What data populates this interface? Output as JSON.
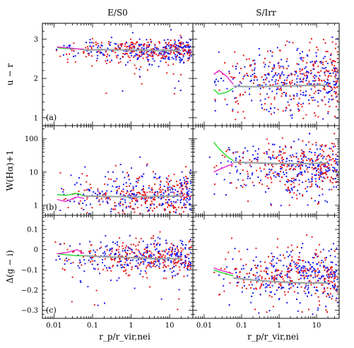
{
  "chart_data": {
    "type": "scatter",
    "columns": [
      "E/S0",
      "S/Irr"
    ],
    "xlabel": "r_p/r_vir,nei",
    "x_scale": "log",
    "xlim": [
      0.005,
      40
    ],
    "xticks": [
      {
        "v": 0.01,
        "label": "0.01"
      },
      {
        "v": 0.1,
        "label": "0.1"
      },
      {
        "v": 1,
        "label": "1"
      },
      {
        "v": 10,
        "label": "10"
      }
    ],
    "series_colors": {
      "red": "#e8181b",
      "blue": "#1a1aee",
      "median": "#9aa3a3",
      "green": "#22d82a",
      "magenta": "#ee22c8"
    },
    "rows": [
      {
        "letter": "(a)",
        "ylabel": "u − r",
        "y_scale": "linear",
        "ylim": [
          0.8,
          3.4
        ],
        "yticks": [
          {
            "v": 1,
            "label": "1"
          },
          {
            "v": 2,
            "label": "2"
          },
          {
            "v": 3,
            "label": "3"
          }
        ],
        "panels": [
          {
            "cloud": {
              "center_y": 2.72,
              "spread_y": 0.14,
              "outlier_low": 1.6,
              "xmin": 0.008,
              "xmax": 35
            },
            "median_line": [
              [
                0.06,
                2.72
              ],
              [
                0.2,
                2.73
              ],
              [
                1,
                2.72
              ],
              [
                5,
                2.71
              ],
              [
                20,
                2.71
              ]
            ],
            "green_line": [
              [
                0.012,
                2.78
              ],
              [
                0.02,
                2.76
              ],
              [
                0.04,
                2.75
              ],
              [
                0.06,
                2.73
              ]
            ],
            "magenta_line": [
              [
                0.012,
                2.8
              ],
              [
                0.02,
                2.78
              ],
              [
                0.04,
                2.75
              ],
              [
                0.06,
                2.74
              ]
            ]
          },
          {
            "cloud": {
              "center_y": 1.95,
              "spread_y": 0.45,
              "outlier_low": 0.95,
              "xmin": 0.012,
              "xmax": 35
            },
            "median_line": [
              [
                0.06,
                1.8
              ],
              [
                0.2,
                1.79
              ],
              [
                1,
                1.8
              ],
              [
                5,
                1.82
              ],
              [
                20,
                1.83
              ]
            ],
            "green_line": [
              [
                0.018,
                1.72
              ],
              [
                0.025,
                1.6
              ],
              [
                0.04,
                1.65
              ],
              [
                0.06,
                1.75
              ]
            ],
            "magenta_line": [
              [
                0.018,
                2.1
              ],
              [
                0.025,
                2.2
              ],
              [
                0.04,
                2.05
              ],
              [
                0.06,
                1.85
              ]
            ]
          }
        ]
      },
      {
        "letter": "(b)",
        "ylabel": "W(Hα)+1",
        "y_scale": "log",
        "ylim": [
          0.5,
          250
        ],
        "yticks": [
          {
            "v": 1,
            "label": "1"
          },
          {
            "v": 10,
            "label": "10"
          },
          {
            "v": 100,
            "label": "100"
          }
        ],
        "panels": [
          {
            "cloud": {
              "center_y": 2.0,
              "spread_y": 0.35,
              "outlier_low": 0.6,
              "xmin": 0.008,
              "xmax": 35
            },
            "median_line": [
              [
                0.06,
                1.9
              ],
              [
                0.2,
                1.85
              ],
              [
                1,
                1.8
              ],
              [
                5,
                1.85
              ],
              [
                20,
                1.9
              ]
            ],
            "green_line": [
              [
                0.012,
                2.1
              ],
              [
                0.02,
                2.0
              ],
              [
                0.04,
                2.3
              ],
              [
                0.06,
                1.9
              ]
            ],
            "magenta_line": [
              [
                0.012,
                1.5
              ],
              [
                0.02,
                1.3
              ],
              [
                0.04,
                1.8
              ],
              [
                0.06,
                1.6
              ]
            ]
          },
          {
            "cloud": {
              "center_y": 15,
              "spread_y": 0.4,
              "outlier_low": 1.0,
              "xmin": 0.012,
              "xmax": 35
            },
            "median_line": [
              [
                0.06,
                20
              ],
              [
                0.2,
                19
              ],
              [
                1,
                18
              ],
              [
                5,
                18
              ],
              [
                20,
                19
              ]
            ],
            "green_line": [
              [
                0.018,
                80
              ],
              [
                0.025,
                50
              ],
              [
                0.04,
                30
              ],
              [
                0.06,
                22
              ]
            ],
            "magenta_line": [
              [
                0.018,
                10
              ],
              [
                0.025,
                12
              ],
              [
                0.04,
                15
              ],
              [
                0.06,
                18
              ]
            ]
          }
        ]
      },
      {
        "letter": "(c)",
        "ylabel": "Δ(g − i)",
        "y_scale": "linear",
        "ylim": [
          -0.34,
          0.17
        ],
        "yticks": [
          {
            "v": -0.3,
            "label": "−0.3"
          },
          {
            "v": -0.2,
            "label": "−0.2"
          },
          {
            "v": -0.1,
            "label": "−0.1"
          },
          {
            "v": 0,
            "label": "0"
          },
          {
            "v": 0.1,
            "label": "0.1"
          }
        ],
        "panels": [
          {
            "cloud": {
              "center_y": -0.035,
              "spread_y": 0.045,
              "outlier_low": -0.3,
              "xmin": 0.008,
              "xmax": 35
            },
            "median_line": [
              [
                0.06,
                -0.03
              ],
              [
                0.2,
                -0.035
              ],
              [
                1,
                -0.04
              ],
              [
                5,
                -0.045
              ],
              [
                20,
                -0.045
              ]
            ],
            "green_line": [
              [
                0.012,
                -0.02
              ],
              [
                0.02,
                -0.025
              ],
              [
                0.04,
                -0.03
              ],
              [
                0.06,
                -0.03
              ]
            ],
            "magenta_line": [
              [
                0.012,
                -0.02
              ],
              [
                0.02,
                -0.015
              ],
              [
                0.04,
                0.0
              ],
              [
                0.06,
                -0.02
              ]
            ]
          },
          {
            "cloud": {
              "center_y": -0.12,
              "spread_y": 0.065,
              "outlier_low": -0.32,
              "xmin": 0.012,
              "xmax": 35
            },
            "median_line": [
              [
                0.06,
                -0.14
              ],
              [
                0.2,
                -0.15
              ],
              [
                1,
                -0.16
              ],
              [
                5,
                -0.165
              ],
              [
                20,
                -0.165
              ]
            ],
            "green_line": [
              [
                0.018,
                -0.1
              ],
              [
                0.025,
                -0.11
              ],
              [
                0.04,
                -0.12
              ],
              [
                0.06,
                -0.13
              ]
            ],
            "magenta_line": [
              [
                0.018,
                -0.09
              ],
              [
                0.025,
                -0.1
              ],
              [
                0.04,
                -0.11
              ],
              [
                0.06,
                -0.12
              ]
            ]
          }
        ]
      }
    ]
  }
}
